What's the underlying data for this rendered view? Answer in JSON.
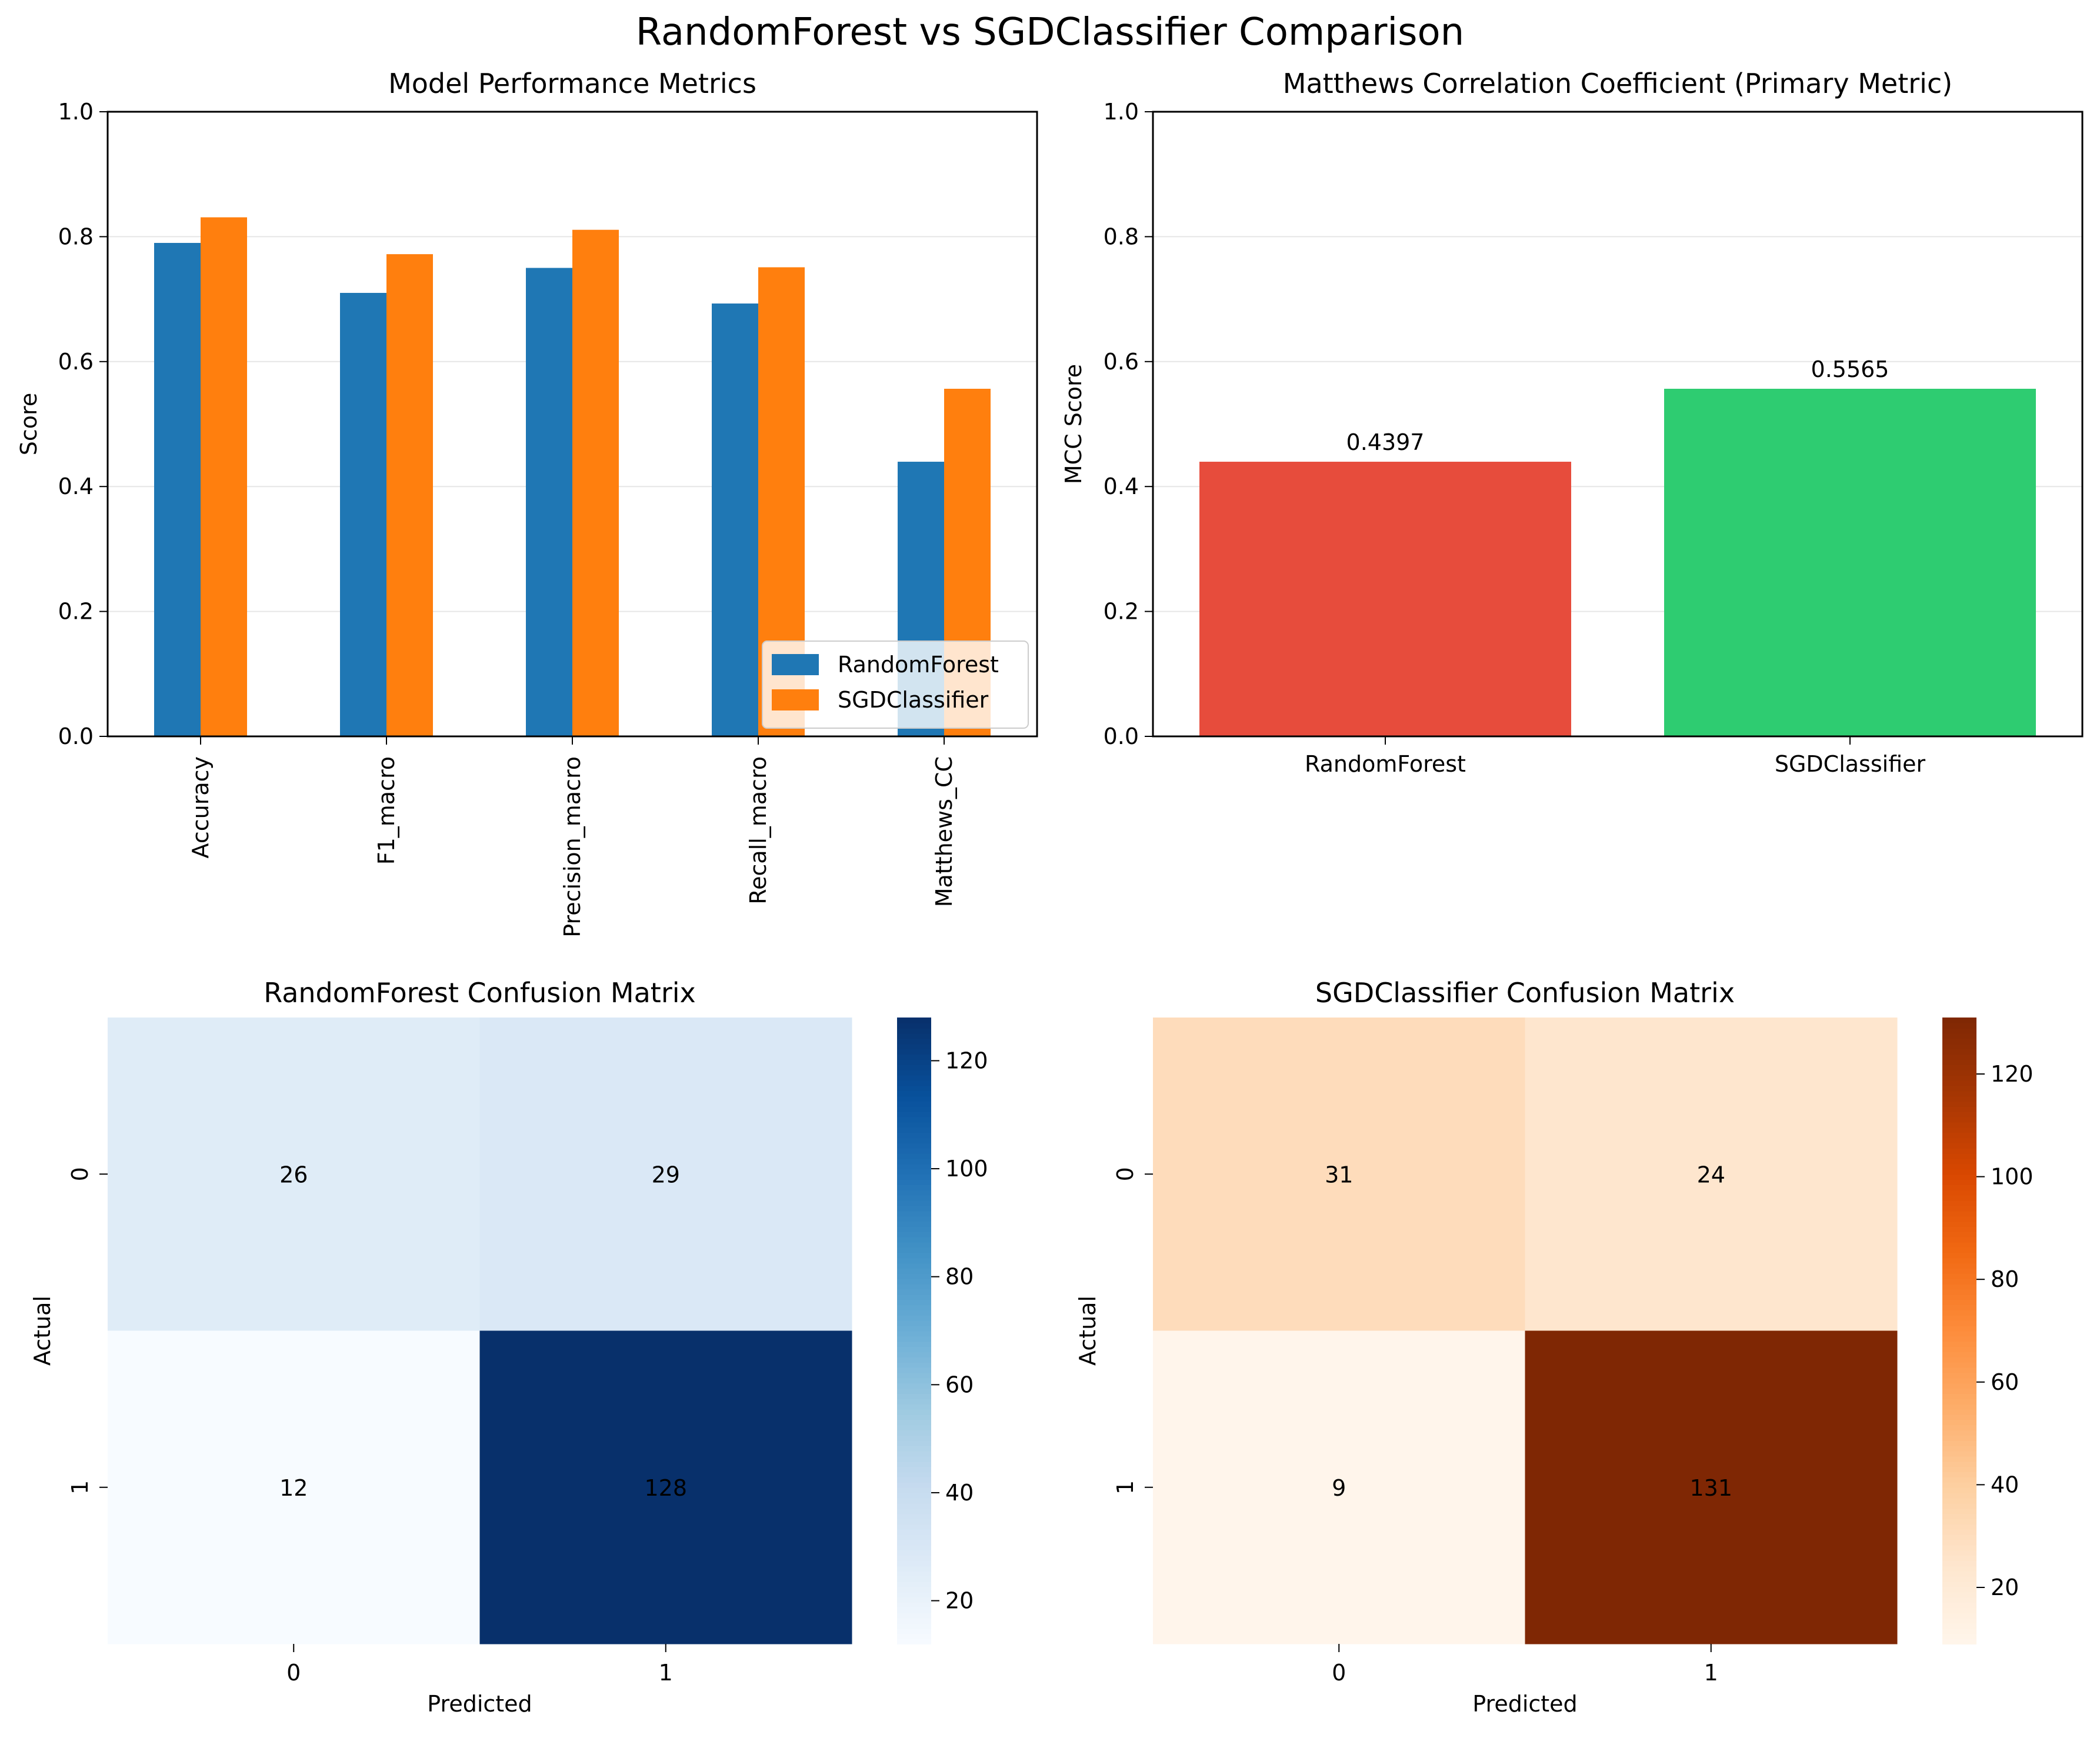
{
  "suptitle": "RandomForest vs SGDClassifier Comparison",
  "chart_data": [
    {
      "type": "bar",
      "title": "Model Performance Metrics",
      "xlabel": "",
      "ylabel": "Score",
      "ylim": [
        0,
        1
      ],
      "yticks": [
        0.0,
        0.2,
        0.4,
        0.6,
        0.8,
        1.0
      ],
      "ytick_labels": [
        "0.0",
        "0.2",
        "0.4",
        "0.6",
        "0.8",
        "1.0"
      ],
      "categories": [
        "Accuracy",
        "F1_macro",
        "Precision_macro",
        "Recall_macro",
        "Matthews_CC"
      ],
      "series": [
        {
          "name": "RandomForest",
          "color": "#1f77b4",
          "values": [
            0.79,
            0.71,
            0.75,
            0.693,
            0.4397
          ]
        },
        {
          "name": "SGDClassifier",
          "color": "#ff7f0e",
          "values": [
            0.831,
            0.772,
            0.811,
            0.751,
            0.5565
          ]
        }
      ],
      "grid": "y",
      "legend": "lower right",
      "xtick_rotation": "vertical"
    },
    {
      "type": "bar",
      "title": "Matthews Correlation Coefficient (Primary Metric)",
      "xlabel": "",
      "ylabel": "MCC Score",
      "ylim": [
        0,
        1
      ],
      "yticks": [
        0.0,
        0.2,
        0.4,
        0.6,
        0.8,
        1.0
      ],
      "ytick_labels": [
        "0.0",
        "0.2",
        "0.4",
        "0.6",
        "0.8",
        "1.0"
      ],
      "categories": [
        "RandomForest",
        "SGDClassifier"
      ],
      "values": [
        0.4397,
        0.5565
      ],
      "data_labels": [
        "0.4397",
        "0.5565"
      ],
      "colors": [
        "#e74c3c",
        "#2ecc71"
      ],
      "grid": "y"
    },
    {
      "type": "heatmap",
      "title": "RandomForest Confusion Matrix",
      "xlabel": "Predicted",
      "ylabel": "Actual",
      "x_categories": [
        "0",
        "1"
      ],
      "y_categories": [
        "0",
        "1"
      ],
      "values": [
        [
          26,
          29
        ],
        [
          12,
          128
        ]
      ],
      "colormap": "Blues",
      "vmin": 12,
      "vmax": 128,
      "colorbar_ticks": [
        20,
        40,
        60,
        80,
        100,
        120
      ]
    },
    {
      "type": "heatmap",
      "title": "SGDClassifier Confusion Matrix",
      "xlabel": "Predicted",
      "ylabel": "Actual",
      "x_categories": [
        "0",
        "1"
      ],
      "y_categories": [
        "0",
        "1"
      ],
      "values": [
        [
          31,
          24
        ],
        [
          9,
          131
        ]
      ],
      "colormap": "Oranges",
      "vmin": 9,
      "vmax": 131,
      "colorbar_ticks": [
        20,
        40,
        60,
        80,
        100,
        120
      ]
    }
  ]
}
